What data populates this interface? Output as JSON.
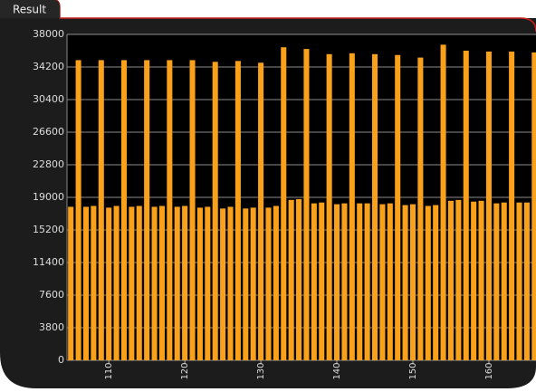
{
  "window": {
    "tab": "Result"
  },
  "chart_data": {
    "type": "bar",
    "color": "#f9a11b",
    "grid": true,
    "x": [
      105,
      106,
      107,
      108,
      109,
      110,
      111,
      112,
      113,
      114,
      115,
      116,
      117,
      118,
      119,
      120,
      121,
      122,
      123,
      124,
      125,
      126,
      127,
      128,
      129,
      130,
      131,
      132,
      133,
      134,
      135,
      136,
      137,
      138,
      139,
      140,
      141,
      142,
      143,
      144,
      145,
      146,
      147,
      148,
      149,
      150,
      151,
      152,
      153,
      154,
      155,
      156,
      157,
      158,
      159,
      160,
      161,
      162,
      163,
      164,
      165,
      166
    ],
    "values": [
      17900,
      35000,
      17900,
      18000,
      35000,
      17800,
      18000,
      35000,
      17900,
      18000,
      35000,
      17900,
      18000,
      35000,
      17900,
      18000,
      35000,
      17800,
      17900,
      34800,
      17700,
      17900,
      34900,
      17700,
      17800,
      34700,
      17800,
      18000,
      36500,
      18700,
      18800,
      36300,
      18300,
      18400,
      35700,
      18200,
      18300,
      35800,
      18300,
      18300,
      35700,
      18200,
      18300,
      35600,
      18100,
      18200,
      35300,
      18000,
      18100,
      36800,
      18600,
      18700,
      36100,
      18500,
      18600,
      36000,
      18300,
      18400,
      36000,
      18400,
      18400,
      35900
    ],
    "xlim": [
      104.5,
      166.2
    ],
    "xticks": [
      110,
      120,
      130,
      140,
      150,
      160
    ],
    "ylim": [
      0,
      38000
    ],
    "yticks": [
      0,
      3800,
      7600,
      11400,
      15200,
      19000,
      22800,
      26600,
      30400,
      34200,
      38000
    ]
  }
}
